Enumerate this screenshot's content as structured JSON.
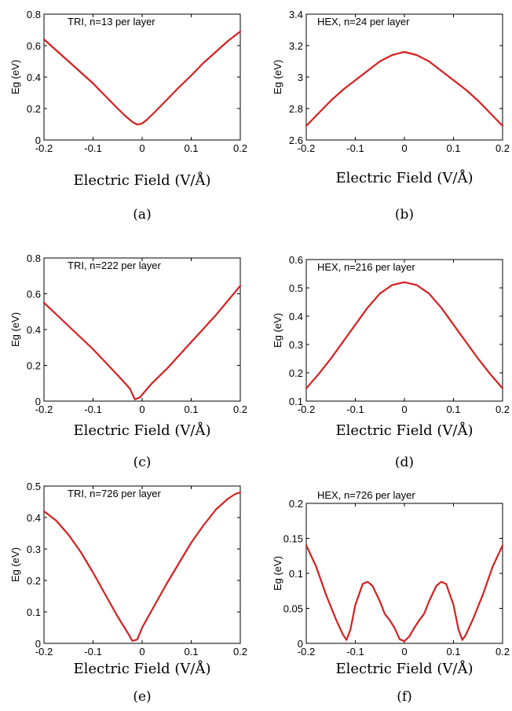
{
  "chart_data": [
    {
      "panel": "a",
      "type": "line",
      "caption": "(a)",
      "annotation": "TRI, n=13 per layer",
      "xlabel": "Electric Field (V/Å)",
      "ylabel": "Eg (eV)",
      "xlim": [
        -0.2,
        0.2
      ],
      "ylim": [
        0,
        0.8
      ],
      "xticks": [
        "-0.2",
        "-0.1",
        "0",
        "0.1",
        "0.2"
      ],
      "yticks": [
        "0",
        "0.2",
        "0.4",
        "0.6",
        "0.8"
      ],
      "grid": false,
      "color": "#d62020",
      "series": [
        {
          "x": [
            -0.2,
            -0.175,
            -0.15,
            -0.125,
            -0.1,
            -0.075,
            -0.05,
            -0.035,
            -0.02,
            -0.01,
            0.0,
            0.01,
            0.025,
            0.05,
            0.075,
            0.1,
            0.125,
            0.15,
            0.175,
            0.2
          ],
          "y": [
            0.64,
            0.57,
            0.5,
            0.43,
            0.36,
            0.28,
            0.2,
            0.155,
            0.115,
            0.098,
            0.105,
            0.13,
            0.175,
            0.255,
            0.335,
            0.41,
            0.49,
            0.56,
            0.63,
            0.69
          ]
        }
      ]
    },
    {
      "panel": "b",
      "type": "line",
      "caption": "(b)",
      "annotation": "HEX, n=24 per layer",
      "xlabel": "Electric Field (V/Å)",
      "ylabel": "Eg (eV)",
      "xlim": [
        -0.2,
        0.2
      ],
      "ylim": [
        2.6,
        3.4
      ],
      "xticks": [
        "-0.2",
        "-0.1",
        "0",
        "0.1",
        "0.2"
      ],
      "yticks": [
        "2.6",
        "2.8",
        "3",
        "3.2",
        "3.4"
      ],
      "grid": false,
      "color": "#d62020",
      "series": [
        {
          "x": [
            -0.2,
            -0.175,
            -0.15,
            -0.125,
            -0.1,
            -0.075,
            -0.05,
            -0.025,
            0.0,
            0.025,
            0.05,
            0.075,
            0.1,
            0.125,
            0.15,
            0.175,
            0.2
          ],
          "y": [
            2.69,
            2.77,
            2.85,
            2.92,
            2.98,
            3.04,
            3.1,
            3.14,
            3.16,
            3.14,
            3.1,
            3.04,
            2.98,
            2.92,
            2.85,
            2.77,
            2.69
          ]
        }
      ]
    },
    {
      "panel": "c",
      "type": "line",
      "caption": "(c)",
      "annotation": "TRI, n=222 per layer",
      "xlabel": "Electric Field (V/Å)",
      "ylabel": "Eg (eV)",
      "xlim": [
        -0.2,
        0.2
      ],
      "ylim": [
        0,
        0.8
      ],
      "xticks": [
        "-0.2",
        "-0.1",
        "0",
        "0.1",
        "0.2"
      ],
      "yticks": [
        "0",
        "0.2",
        "0.4",
        "0.6",
        "0.8"
      ],
      "grid": false,
      "color": "#d62020",
      "series": [
        {
          "x": [
            -0.2,
            -0.15,
            -0.1,
            -0.05,
            -0.025,
            -0.015,
            -0.005,
            0.02,
            0.05,
            0.1,
            0.15,
            0.2
          ],
          "y": [
            0.55,
            0.42,
            0.29,
            0.145,
            0.07,
            0.01,
            0.02,
            0.1,
            0.18,
            0.33,
            0.48,
            0.645
          ]
        }
      ]
    },
    {
      "panel": "d",
      "type": "line",
      "caption": "(d)",
      "annotation": "HEX, n=216 per layer",
      "xlabel": "Electric Field (V/Å)",
      "ylabel": "Eg (eV)",
      "xlim": [
        -0.2,
        0.2
      ],
      "ylim": [
        0.1,
        0.6
      ],
      "xticks": [
        "-0.2",
        "-0.1",
        "0",
        "0.1",
        "0.2"
      ],
      "yticks": [
        "0.1",
        "0.2",
        "0.3",
        "0.4",
        "0.5",
        "0.6"
      ],
      "grid": false,
      "color": "#d62020",
      "series": [
        {
          "x": [
            -0.2,
            -0.175,
            -0.15,
            -0.125,
            -0.1,
            -0.075,
            -0.05,
            -0.025,
            0.0,
            0.025,
            0.05,
            0.075,
            0.1,
            0.125,
            0.15,
            0.175,
            0.2
          ],
          "y": [
            0.145,
            0.195,
            0.25,
            0.31,
            0.37,
            0.43,
            0.48,
            0.51,
            0.52,
            0.51,
            0.48,
            0.43,
            0.37,
            0.31,
            0.25,
            0.195,
            0.145
          ]
        }
      ]
    },
    {
      "panel": "e",
      "type": "line",
      "caption": "(e)",
      "annotation": "TRI, n=726 per layer",
      "xlabel": "Electric Field (V/Å)",
      "ylabel": "Eg (eV)",
      "xlim": [
        -0.2,
        0.2
      ],
      "ylim": [
        0,
        0.5
      ],
      "xticks": [
        "-0.2",
        "-0.1",
        "0",
        "0.1",
        "0.2"
      ],
      "yticks": [
        "0",
        "0.1",
        "0.2",
        "0.3",
        "0.4",
        "0.5"
      ],
      "grid": false,
      "color": "#d62020",
      "series": [
        {
          "x": [
            -0.2,
            -0.175,
            -0.15,
            -0.125,
            -0.1,
            -0.075,
            -0.05,
            -0.03,
            -0.02,
            -0.01,
            0.0,
            0.025,
            0.05,
            0.075,
            0.1,
            0.125,
            0.15,
            0.175,
            0.19,
            0.2
          ],
          "y": [
            0.42,
            0.39,
            0.345,
            0.29,
            0.225,
            0.155,
            0.085,
            0.035,
            0.008,
            0.012,
            0.05,
            0.12,
            0.19,
            0.255,
            0.32,
            0.375,
            0.425,
            0.46,
            0.475,
            0.48
          ]
        }
      ]
    },
    {
      "panel": "f",
      "type": "line",
      "caption": "(f)",
      "annotation": "HEX, n=726 per layer",
      "xlabel": "Electric Field (V/Å)",
      "ylabel": "Eg (eV)",
      "xlim": [
        -0.2,
        0.2
      ],
      "ylim": [
        0,
        0.2
      ],
      "xticks": [
        "-0.2",
        "-0.1",
        "0",
        "0.1",
        "0.2"
      ],
      "yticks": [
        "0",
        "0.05",
        "0.1",
        "0.15",
        "0.2"
      ],
      "grid": false,
      "color": "#d62020",
      "series": [
        {
          "x": [
            -0.2,
            -0.18,
            -0.16,
            -0.14,
            -0.125,
            -0.118,
            -0.11,
            -0.1,
            -0.085,
            -0.075,
            -0.065,
            -0.05,
            -0.04,
            -0.03,
            -0.02,
            -0.01,
            0.0,
            0.01,
            0.02,
            0.03,
            0.04,
            0.05,
            0.065,
            0.075,
            0.085,
            0.1,
            0.11,
            0.118,
            0.125,
            0.14,
            0.16,
            0.18,
            0.2
          ],
          "y": [
            0.14,
            0.11,
            0.07,
            0.035,
            0.012,
            0.005,
            0.02,
            0.055,
            0.085,
            0.088,
            0.082,
            0.06,
            0.042,
            0.033,
            0.022,
            0.006,
            0.003,
            0.01,
            0.022,
            0.033,
            0.042,
            0.06,
            0.082,
            0.088,
            0.085,
            0.055,
            0.02,
            0.005,
            0.012,
            0.035,
            0.07,
            0.11,
            0.14
          ]
        }
      ]
    }
  ]
}
